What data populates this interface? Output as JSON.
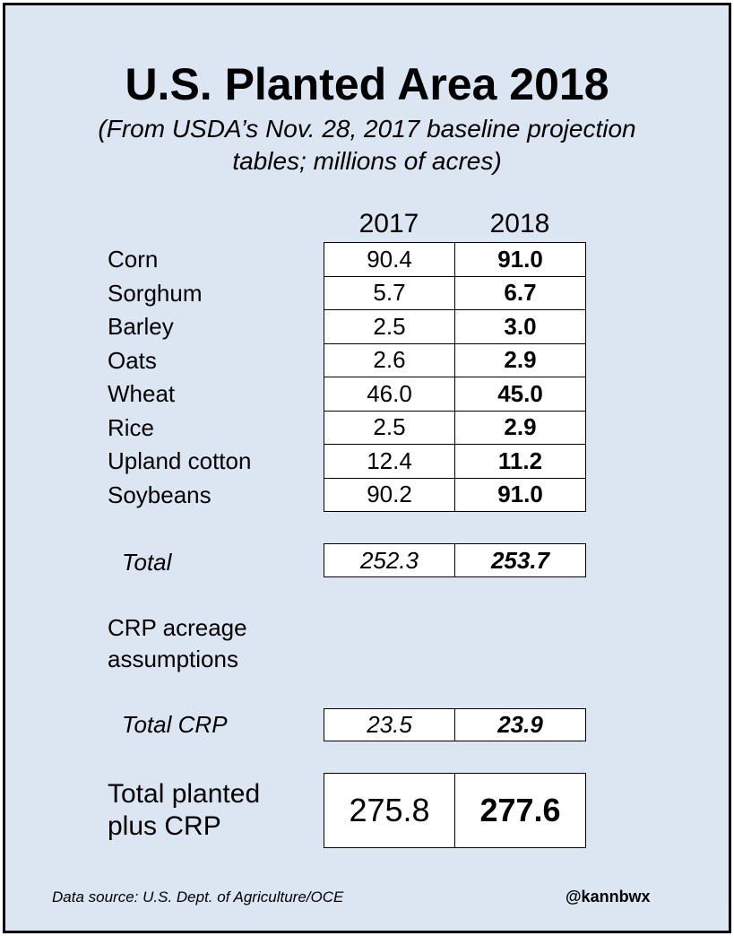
{
  "chart_data": {
    "type": "table",
    "title": "U.S. Planted Area 2018",
    "subtitle": "(From USDA’s Nov. 28, 2017 baseline projection tables; millions of acres)",
    "columns": [
      "2017",
      "2018"
    ],
    "rows": [
      {
        "label": "Corn",
        "values": [
          "90.4",
          "91.0"
        ]
      },
      {
        "label": "Sorghum",
        "values": [
          "5.7",
          "6.7"
        ]
      },
      {
        "label": "Barley",
        "values": [
          "2.5",
          "3.0"
        ]
      },
      {
        "label": "Oats",
        "values": [
          "2.6",
          "2.9"
        ]
      },
      {
        "label": "Wheat",
        "values": [
          "46.0",
          "45.0"
        ]
      },
      {
        "label": "Rice",
        "values": [
          "2.5",
          "2.9"
        ]
      },
      {
        "label": "Upland cotton",
        "values": [
          "12.4",
          "11.2"
        ]
      },
      {
        "label": "Soybeans",
        "values": [
          "90.2",
          "91.0"
        ]
      }
    ],
    "total": {
      "label": "Total",
      "values": [
        "252.3",
        "253.7"
      ]
    },
    "crp_section_label": "CRP acreage assumptions",
    "total_crp": {
      "label": "Total CRP",
      "values": [
        "23.5",
        "23.9"
      ]
    },
    "total_planted_plus_crp": {
      "label": "Total planted plus CRP",
      "values": [
        "275.8",
        "277.6"
      ]
    }
  },
  "footer": {
    "source": "Data source: U.S. Dept. of Agriculture/OCE",
    "handle": "@kannbwx"
  }
}
